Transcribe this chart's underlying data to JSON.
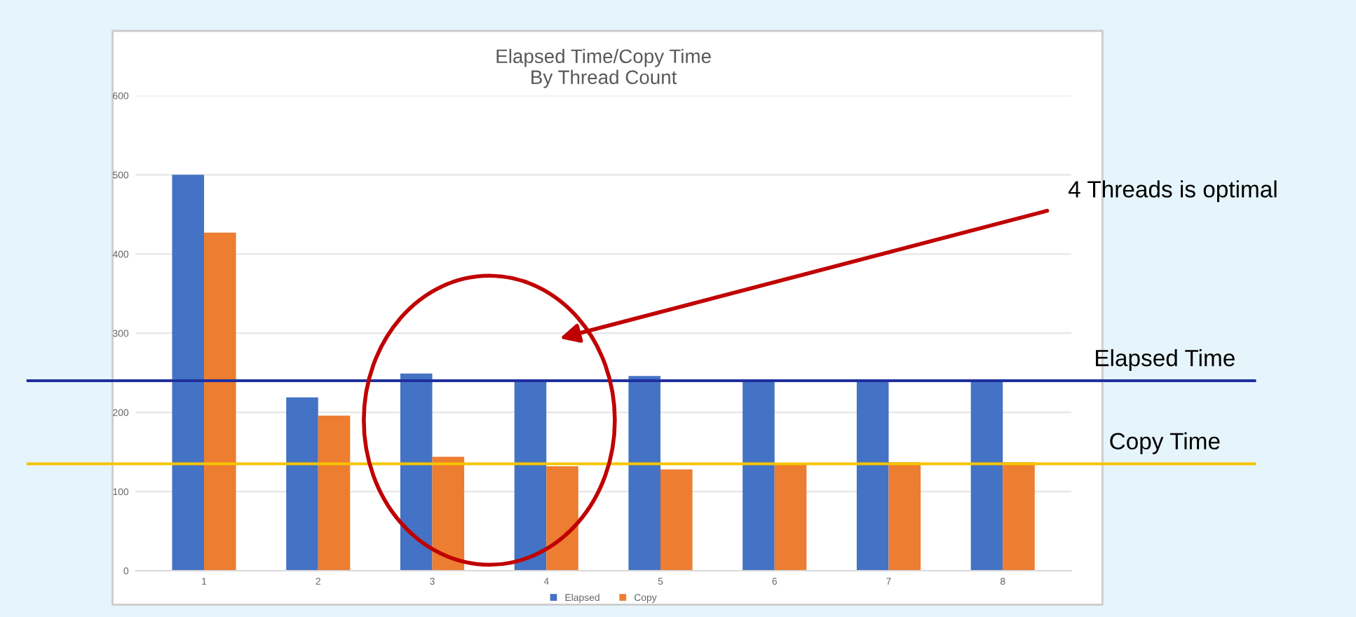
{
  "chart_data": {
    "type": "bar",
    "title": "Elapsed Time/Copy Time\nBy Thread Count",
    "categories": [
      "1",
      "2",
      "3",
      "4",
      "5",
      "6",
      "7",
      "8"
    ],
    "series": [
      {
        "name": "Elapsed",
        "color": "#4472c4",
        "values": [
          500,
          219,
          249,
          239,
          246,
          239,
          239,
          239
        ]
      },
      {
        "name": "Copy",
        "color": "#ed7d31",
        "values": [
          427,
          196,
          144,
          132,
          128,
          134,
          137,
          137
        ]
      }
    ],
    "ylim": [
      0,
      600
    ],
    "yticks": [
      0,
      100,
      200,
      300,
      400,
      500,
      600
    ],
    "grid": "y",
    "legend": "bottom",
    "ref_lines": [
      {
        "axis": "y",
        "value": 240,
        "label": "Elapsed Time",
        "color": "#1f2f9e"
      },
      {
        "axis": "y",
        "value": 135,
        "label": "Copy Time",
        "color": "#f5c400"
      }
    ],
    "annotations": [
      "4 Threads is optimal"
    ]
  }
}
